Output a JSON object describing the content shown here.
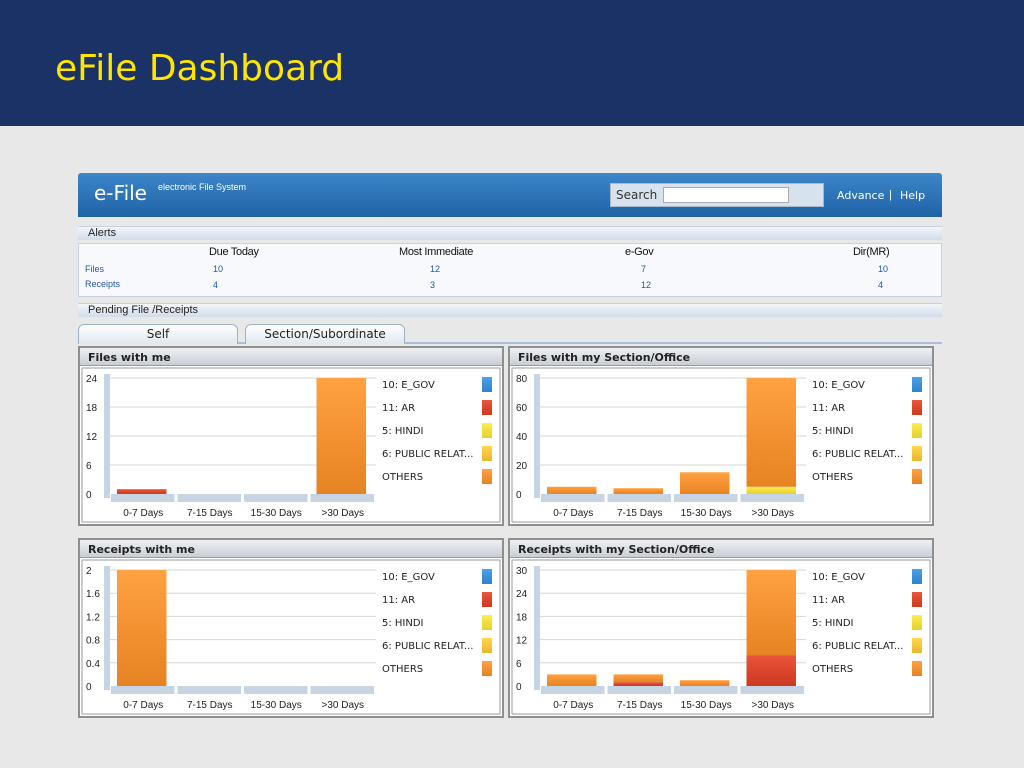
{
  "slide": {
    "title": "eFile Dashboard"
  },
  "app": {
    "brand": "e-File",
    "brand_sub": "electronic File System",
    "search_label": "Search",
    "search_value": "",
    "advance_label": "Advance",
    "separator": "|",
    "help_label": "Help"
  },
  "alerts": {
    "title": "Alerts",
    "columns": [
      "Due Today",
      "Most Immediate",
      "e-Gov",
      "Dir(MR)"
    ],
    "rows": [
      {
        "label": "Files",
        "values": [
          "10",
          "12",
          "7",
          "10"
        ]
      },
      {
        "label": "Receipts",
        "values": [
          "4",
          "3",
          "12",
          "4"
        ]
      }
    ]
  },
  "pending": {
    "title": "Pending File /Receipts"
  },
  "tabs": [
    {
      "label": "Self",
      "active": true
    },
    {
      "label": "Section/Subordinate",
      "active": false
    }
  ],
  "colors": {
    "e_gov": "#3a8fd8",
    "ar": "#d9452b",
    "hindi": "#f0dc3c",
    "public": "#f3c43a",
    "others": "#f29030"
  },
  "legend": [
    {
      "label": "10: E_GOV",
      "key": "e_gov"
    },
    {
      "label": "11: AR",
      "key": "ar"
    },
    {
      "label": "5: HINDI",
      "key": "hindi"
    },
    {
      "label": "6: PUBLIC RELAT...",
      "key": "public"
    },
    {
      "label": "OTHERS",
      "key": "others"
    }
  ],
  "chart_data": [
    {
      "title": "Files with me",
      "type": "bar",
      "stacked": true,
      "categories": [
        "0-7 Days",
        "7-15 Days",
        "15-30 Days",
        ">30 Days"
      ],
      "yticks": [
        "24",
        "18",
        "12",
        "6",
        "0"
      ],
      "ylim": [
        0,
        24
      ],
      "series": [
        {
          "name": "11: AR",
          "key": "ar",
          "values": [
            1,
            0,
            0,
            0
          ]
        },
        {
          "name": "OTHERS",
          "key": "others",
          "values": [
            0,
            0,
            0,
            24
          ]
        }
      ]
    },
    {
      "title": "Files with my Section/Office",
      "type": "bar",
      "stacked": true,
      "categories": [
        "0-7 Days",
        "7-15 Days",
        "15-30 Days",
        ">30 Days"
      ],
      "yticks": [
        "80",
        "60",
        "40",
        "20",
        "0"
      ],
      "ylim": [
        0,
        80
      ],
      "series": [
        {
          "name": "5: HINDI",
          "key": "hindi",
          "values": [
            0,
            0,
            0,
            5
          ]
        },
        {
          "name": "OTHERS",
          "key": "others",
          "values": [
            5,
            4,
            15,
            75
          ]
        }
      ]
    },
    {
      "title": "Receipts with me",
      "type": "bar",
      "stacked": true,
      "categories": [
        "0-7 Days",
        "7-15 Days",
        "15-30 Days",
        ">30 Days"
      ],
      "yticks": [
        "2",
        "1.6",
        "1.2",
        "0.8",
        "0.4",
        "0"
      ],
      "ylim": [
        0,
        2
      ],
      "series": [
        {
          "name": "OTHERS",
          "key": "others",
          "values": [
            2,
            0,
            0,
            0
          ]
        }
      ]
    },
    {
      "title": "Receipts with my Section/Office",
      "type": "bar",
      "stacked": true,
      "categories": [
        "0-7 Days",
        "7-15 Days",
        "15-30 Days",
        ">30 Days"
      ],
      "yticks": [
        "30",
        "24",
        "18",
        "12",
        "6",
        "0"
      ],
      "ylim": [
        0,
        30
      ],
      "series": [
        {
          "name": "11: AR",
          "key": "ar",
          "values": [
            0,
            1,
            0,
            8
          ]
        },
        {
          "name": "OTHERS",
          "key": "others",
          "values": [
            3,
            2,
            1.5,
            22
          ]
        }
      ]
    }
  ]
}
